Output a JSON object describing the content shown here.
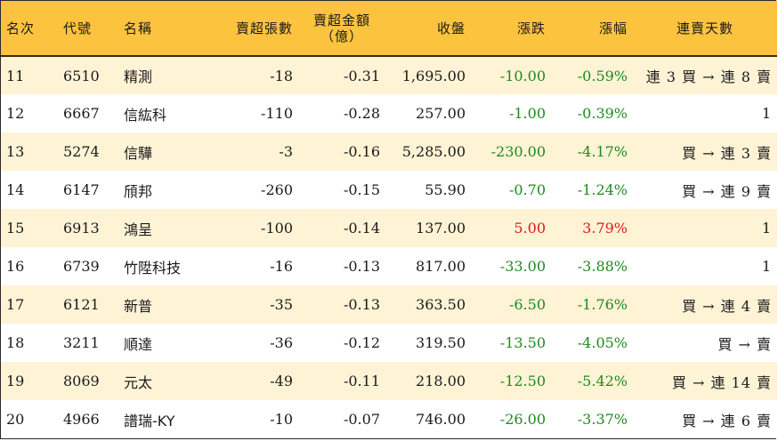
{
  "headers": {
    "rank": "名次",
    "code": "代號",
    "name": "名稱",
    "net_sell_lots": "賣超張數",
    "net_sell_amount_line1": "賣超金額",
    "net_sell_amount_line2": "（億）",
    "close": "收盤",
    "change": "漲跌",
    "change_pct": "漲幅",
    "streak": "連賣天數"
  },
  "colors": {
    "header_bg": "#fcc33f",
    "stripe_bg": "#fff3d6",
    "down": "#1e8a1e",
    "up": "#e01818"
  },
  "rows": [
    {
      "rank": "11",
      "code": "6510",
      "name": "精測",
      "lots": "-18",
      "amount": "-0.31",
      "close": "1,695.00",
      "change": "-10.00",
      "pct": "-0.59%",
      "dir": "down",
      "streak": "連 3 買 → 連 8 賣"
    },
    {
      "rank": "12",
      "code": "6667",
      "name": "信紘科",
      "lots": "-110",
      "amount": "-0.28",
      "close": "257.00",
      "change": "-1.00",
      "pct": "-0.39%",
      "dir": "down",
      "streak": "1"
    },
    {
      "rank": "13",
      "code": "5274",
      "name": "信驊",
      "lots": "-3",
      "amount": "-0.16",
      "close": "5,285.00",
      "change": "-230.00",
      "pct": "-4.17%",
      "dir": "down",
      "streak": "買 → 連 3 賣"
    },
    {
      "rank": "14",
      "code": "6147",
      "name": "頎邦",
      "lots": "-260",
      "amount": "-0.15",
      "close": "55.90",
      "change": "-0.70",
      "pct": "-1.24%",
      "dir": "down",
      "streak": "買 → 連 9 賣"
    },
    {
      "rank": "15",
      "code": "6913",
      "name": "鴻呈",
      "lots": "-100",
      "amount": "-0.14",
      "close": "137.00",
      "change": "5.00",
      "pct": "3.79%",
      "dir": "up",
      "streak": "1"
    },
    {
      "rank": "16",
      "code": "6739",
      "name": "竹陞科技",
      "lots": "-16",
      "amount": "-0.13",
      "close": "817.00",
      "change": "-33.00",
      "pct": "-3.88%",
      "dir": "down",
      "streak": "1"
    },
    {
      "rank": "17",
      "code": "6121",
      "name": "新普",
      "lots": "-35",
      "amount": "-0.13",
      "close": "363.50",
      "change": "-6.50",
      "pct": "-1.76%",
      "dir": "down",
      "streak": "買 → 連 4 賣"
    },
    {
      "rank": "18",
      "code": "3211",
      "name": "順達",
      "lots": "-36",
      "amount": "-0.12",
      "close": "319.50",
      "change": "-13.50",
      "pct": "-4.05%",
      "dir": "down",
      "streak": "買 → 賣"
    },
    {
      "rank": "19",
      "code": "8069",
      "name": "元太",
      "lots": "-49",
      "amount": "-0.11",
      "close": "218.00",
      "change": "-12.50",
      "pct": "-5.42%",
      "dir": "down",
      "streak": "買 → 連 14 賣"
    },
    {
      "rank": "20",
      "code": "4966",
      "name": "譜瑞-KY",
      "lots": "-10",
      "amount": "-0.07",
      "close": "746.00",
      "change": "-26.00",
      "pct": "-3.37%",
      "dir": "down",
      "streak": "買 → 連 6 賣"
    }
  ]
}
